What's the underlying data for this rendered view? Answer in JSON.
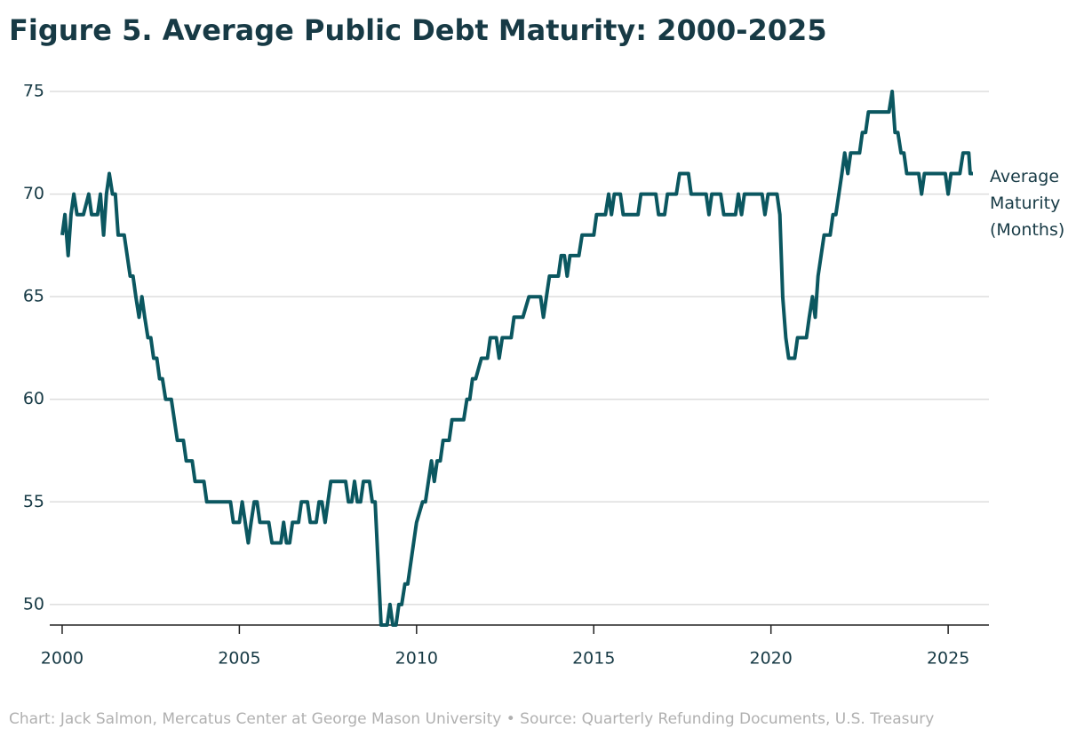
{
  "chart_data": {
    "type": "line",
    "title": "Figure 5. Average Public Debt Maturity: 2000-2025",
    "source": "Chart: Jack Salmon, Mercatus Center at George Mason University • Source: Quarterly Refunding Documents, U.S. Treasury",
    "x": [
      2000.0,
      2000.08,
      2000.17,
      2000.25,
      2000.33,
      2000.42,
      2000.5,
      2000.6,
      2000.75,
      2000.83,
      2001.0,
      2001.08,
      2001.17,
      2001.25,
      2001.33,
      2001.42,
      2001.5,
      2001.58,
      2001.75,
      2001.92,
      2002.0,
      2002.08,
      2002.17,
      2002.25,
      2002.33,
      2002.42,
      2002.5,
      2002.58,
      2002.67,
      2002.75,
      2002.83,
      2002.92,
      2003.08,
      2003.25,
      2003.42,
      2003.5,
      2003.67,
      2003.75,
      2004.0,
      2004.08,
      2004.5,
      2004.75,
      2004.83,
      2005.0,
      2005.08,
      2005.25,
      2005.33,
      2005.42,
      2005.5,
      2005.58,
      2005.83,
      2005.92,
      2006.17,
      2006.25,
      2006.33,
      2006.42,
      2006.5,
      2006.67,
      2006.75,
      2006.92,
      2007.0,
      2007.17,
      2007.25,
      2007.33,
      2007.42,
      2007.58,
      2008.0,
      2008.08,
      2008.17,
      2008.25,
      2008.33,
      2008.42,
      2008.5,
      2008.67,
      2008.75,
      2008.83,
      2009.0,
      2009.17,
      2009.25,
      2009.33,
      2009.42,
      2009.5,
      2009.58,
      2009.67,
      2009.75,
      2010.0,
      2010.17,
      2010.25,
      2010.42,
      2010.5,
      2010.58,
      2010.67,
      2010.75,
      2010.92,
      2011.0,
      2011.33,
      2011.42,
      2011.5,
      2011.58,
      2011.67,
      2011.83,
      2012.0,
      2012.08,
      2012.25,
      2012.33,
      2012.42,
      2012.67,
      2012.75,
      2013.0,
      2013.17,
      2013.5,
      2013.58,
      2013.75,
      2014.0,
      2014.08,
      2014.17,
      2014.25,
      2014.33,
      2014.58,
      2014.67,
      2015.0,
      2015.08,
      2015.33,
      2015.42,
      2015.5,
      2015.58,
      2015.75,
      2015.83,
      2016.17,
      2016.25,
      2016.33,
      2016.75,
      2016.83,
      2017.0,
      2017.08,
      2017.33,
      2017.42,
      2017.67,
      2017.75,
      2018.17,
      2018.25,
      2018.33,
      2018.58,
      2018.67,
      2019.0,
      2019.08,
      2019.17,
      2019.25,
      2019.75,
      2019.83,
      2019.92,
      2020.17,
      2020.25,
      2020.33,
      2020.42,
      2020.5,
      2020.67,
      2020.75,
      2021.0,
      2021.08,
      2021.17,
      2021.25,
      2021.33,
      2021.5,
      2021.67,
      2021.75,
      2021.83,
      2022.0,
      2022.08,
      2022.17,
      2022.25,
      2022.5,
      2022.58,
      2022.67,
      2022.75,
      2023.17,
      2023.33,
      2023.42,
      2023.5,
      2023.58,
      2023.67,
      2023.75,
      2023.83,
      2024.17,
      2024.25,
      2024.33,
      2024.92,
      2025.0,
      2025.08,
      2025.33,
      2025.42,
      2025.58,
      2025.62,
      2025.7
    ],
    "series": [
      {
        "name": "Average Maturity (Months)",
        "color": "#0b5760",
        "values": [
          68,
          69,
          67,
          69,
          70,
          69,
          69,
          69,
          70,
          69,
          69,
          70,
          68,
          70,
          71,
          70,
          70,
          68,
          68,
          66,
          66,
          65,
          64,
          65,
          64,
          63,
          63,
          62,
          62,
          61,
          61,
          60,
          60,
          58,
          58,
          57,
          57,
          56,
          56,
          55,
          55,
          55,
          54,
          54,
          55,
          53,
          54,
          55,
          55,
          54,
          54,
          53,
          53,
          54,
          53,
          53,
          54,
          54,
          55,
          55,
          54,
          54,
          55,
          55,
          54,
          56,
          56,
          55,
          55,
          56,
          55,
          55,
          56,
          56,
          55,
          55,
          49,
          49,
          50,
          49,
          49,
          50,
          50,
          51,
          51,
          54,
          55,
          55,
          57,
          56,
          57,
          57,
          58,
          58,
          59,
          59,
          60,
          60,
          61,
          61,
          62,
          62,
          63,
          63,
          62,
          63,
          63,
          64,
          64,
          65,
          65,
          64,
          66,
          66,
          67,
          67,
          66,
          67,
          67,
          68,
          68,
          69,
          69,
          70,
          69,
          70,
          70,
          69,
          69,
          69,
          70,
          70,
          69,
          69,
          70,
          70,
          71,
          71,
          70,
          70,
          69,
          70,
          70,
          69,
          69,
          70,
          69,
          70,
          70,
          69,
          70,
          70,
          69,
          65,
          63,
          62,
          62,
          63,
          63,
          64,
          65,
          64,
          66,
          68,
          68,
          69,
          69,
          71,
          72,
          71,
          72,
          72,
          73,
          73,
          74,
          74,
          74,
          75,
          73,
          73,
          72,
          72,
          71,
          71,
          70,
          71,
          71,
          70,
          71,
          71,
          72,
          72,
          71,
          71
        ]
      }
    ],
    "xlim": [
      1999.6,
      2026.1
    ],
    "xticks": [
      2000,
      2005,
      2010,
      2015,
      2020,
      2025
    ],
    "ylim": [
      49,
      75
    ],
    "yticks": [
      50,
      55,
      60,
      65,
      70,
      75
    ],
    "grid": true
  }
}
